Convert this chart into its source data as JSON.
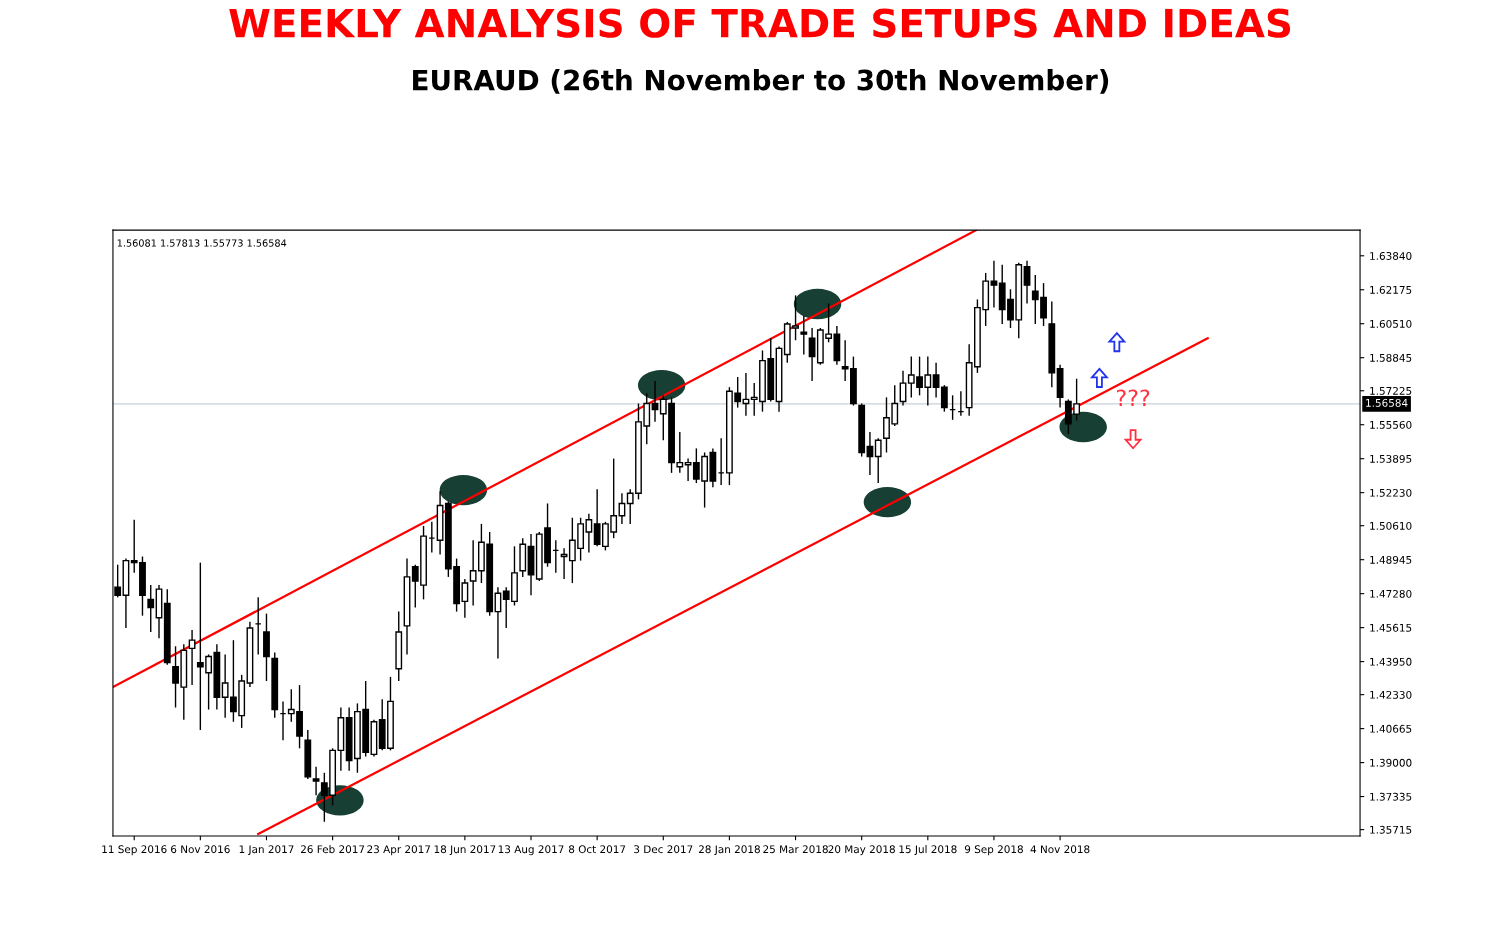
{
  "chart_data": {
    "type": "candlestick",
    "title": "WEEKLY ANALYSIS OF TRADE SETUPS AND IDEAS",
    "subtitle": "EURAUD (26th November to 30th November)",
    "annotations": [
      "1.56081 1.57813 1.55773 1.56584",
      "???"
    ],
    "color": "#000000",
    "x": [
      "2016-08-28",
      "2016-09-04",
      "2016-09-11",
      "2016-09-18",
      "2016-09-25",
      "2016-10-02",
      "2016-10-09",
      "2016-10-16",
      "2016-10-23",
      "2016-10-30",
      "2016-11-06",
      "2016-11-13",
      "2016-11-20",
      "2016-11-27",
      "2016-12-04",
      "2016-12-11",
      "2016-12-18",
      "2016-12-25",
      "2017-01-01",
      "2017-01-08",
      "2017-01-15",
      "2017-01-22",
      "2017-01-29",
      "2017-02-05",
      "2017-02-12",
      "2017-02-19",
      "2017-02-26",
      "2017-03-05",
      "2017-03-12",
      "2017-03-19",
      "2017-03-26",
      "2017-04-02",
      "2017-04-09",
      "2017-04-16",
      "2017-04-23",
      "2017-04-30",
      "2017-05-07",
      "2017-05-14",
      "2017-05-21",
      "2017-05-28",
      "2017-06-04",
      "2017-06-11",
      "2017-06-18",
      "2017-06-25",
      "2017-07-02",
      "2017-07-09",
      "2017-07-16",
      "2017-07-23",
      "2017-07-30",
      "2017-08-06",
      "2017-08-13",
      "2017-08-20",
      "2017-08-27",
      "2017-09-03",
      "2017-09-10",
      "2017-09-17",
      "2017-09-24",
      "2017-10-01",
      "2017-10-08",
      "2017-10-15",
      "2017-10-22",
      "2017-10-29",
      "2017-11-05",
      "2017-11-12",
      "2017-11-19",
      "2017-11-26",
      "2017-12-03",
      "2017-12-10",
      "2017-12-17",
      "2017-12-24",
      "2017-12-31",
      "2018-01-07",
      "2018-01-14",
      "2018-01-21",
      "2018-01-28",
      "2018-02-04",
      "2018-02-11",
      "2018-02-18",
      "2018-02-25",
      "2018-03-04",
      "2018-03-11",
      "2018-03-18",
      "2018-03-25",
      "2018-04-01",
      "2018-04-08",
      "2018-04-15",
      "2018-04-22",
      "2018-04-29",
      "2018-05-06",
      "2018-05-13",
      "2018-05-20",
      "2018-05-27",
      "2018-06-03",
      "2018-06-10",
      "2018-06-17",
      "2018-06-24",
      "2018-07-01",
      "2018-07-08",
      "2018-07-15",
      "2018-07-22",
      "2018-07-29",
      "2018-08-05",
      "2018-08-12",
      "2018-08-19",
      "2018-08-26",
      "2018-09-02",
      "2018-09-09",
      "2018-09-16",
      "2018-09-23",
      "2018-09-30",
      "2018-10-07",
      "2018-10-14",
      "2018-10-21",
      "2018-10-28",
      "2018-11-04",
      "2018-11-11",
      "2018-11-18"
    ],
    "ohlc": [
      [
        1.476,
        1.487,
        1.471,
        1.472
      ],
      [
        1.472,
        1.49,
        1.456,
        1.489
      ],
      [
        1.489,
        1.509,
        1.483,
        1.488
      ],
      [
        1.488,
        1.491,
        1.462,
        1.472
      ],
      [
        1.47,
        1.477,
        1.454,
        1.466
      ],
      [
        1.461,
        1.477,
        1.451,
        1.475
      ],
      [
        1.468,
        1.475,
        1.438,
        1.439
      ],
      [
        1.437,
        1.447,
        1.417,
        1.429
      ],
      [
        1.427,
        1.448,
        1.411,
        1.445
      ],
      [
        1.446,
        1.455,
        1.428,
        1.45
      ],
      [
        1.439,
        1.488,
        1.406,
        1.437
      ],
      [
        1.434,
        1.443,
        1.416,
        1.442
      ],
      [
        1.444,
        1.448,
        1.416,
        1.422
      ],
      [
        1.422,
        1.443,
        1.412,
        1.429
      ],
      [
        1.422,
        1.45,
        1.41,
        1.415
      ],
      [
        1.413,
        1.433,
        1.407,
        1.43
      ],
      [
        1.429,
        1.459,
        1.427,
        1.456
      ],
      [
        1.458,
        1.471,
        1.443,
        1.458
      ],
      [
        1.454,
        1.463,
        1.43,
        1.442
      ],
      [
        1.441,
        1.444,
        1.412,
        1.416
      ],
      [
        1.414,
        1.42,
        1.401,
        1.414
      ],
      [
        1.414,
        1.426,
        1.41,
        1.416
      ],
      [
        1.415,
        1.428,
        1.397,
        1.403
      ],
      [
        1.401,
        1.406,
        1.382,
        1.383
      ],
      [
        1.382,
        1.388,
        1.374,
        1.381
      ],
      [
        1.38,
        1.385,
        1.361,
        1.374
      ],
      [
        1.374,
        1.397,
        1.369,
        1.396
      ],
      [
        1.396,
        1.417,
        1.386,
        1.412
      ],
      [
        1.412,
        1.417,
        1.386,
        1.391
      ],
      [
        1.392,
        1.419,
        1.385,
        1.415
      ],
      [
        1.416,
        1.43,
        1.393,
        1.395
      ],
      [
        1.394,
        1.411,
        1.393,
        1.41
      ],
      [
        1.411,
        1.421,
        1.396,
        1.397
      ],
      [
        1.397,
        1.432,
        1.396,
        1.42
      ],
      [
        1.436,
        1.464,
        1.43,
        1.454
      ],
      [
        1.457,
        1.49,
        1.443,
        1.481
      ],
      [
        1.486,
        1.487,
        1.466,
        1.479
      ],
      [
        1.477,
        1.506,
        1.47,
        1.501
      ],
      [
        1.5,
        1.508,
        1.493,
        1.5
      ],
      [
        1.499,
        1.523,
        1.492,
        1.516
      ],
      [
        1.517,
        1.518,
        1.481,
        1.485
      ],
      [
        1.486,
        1.49,
        1.464,
        1.468
      ],
      [
        1.469,
        1.48,
        1.461,
        1.478
      ],
      [
        1.479,
        1.499,
        1.467,
        1.484
      ],
      [
        1.484,
        1.507,
        1.478,
        1.498
      ],
      [
        1.497,
        1.503,
        1.462,
        1.464
      ],
      [
        1.464,
        1.476,
        1.441,
        1.473
      ],
      [
        1.474,
        1.476,
        1.456,
        1.47
      ],
      [
        1.469,
        1.496,
        1.467,
        1.483
      ],
      [
        1.484,
        1.5,
        1.481,
        1.497
      ],
      [
        1.496,
        1.502,
        1.472,
        1.482
      ],
      [
        1.48,
        1.503,
        1.479,
        1.502
      ],
      [
        1.505,
        1.517,
        1.486,
        1.488
      ],
      [
        1.494,
        1.499,
        1.483,
        1.494
      ],
      [
        1.491,
        1.495,
        1.48,
        1.492
      ],
      [
        1.489,
        1.51,
        1.478,
        1.499
      ],
      [
        1.495,
        1.51,
        1.489,
        1.507
      ],
      [
        1.503,
        1.512,
        1.493,
        1.509
      ],
      [
        1.507,
        1.524,
        1.496,
        1.497
      ],
      [
        1.496,
        1.508,
        1.494,
        1.507
      ],
      [
        1.503,
        1.539,
        1.5,
        1.511
      ],
      [
        1.511,
        1.522,
        1.507,
        1.517
      ],
      [
        1.517,
        1.524,
        1.507,
        1.522
      ],
      [
        1.522,
        1.566,
        1.519,
        1.557
      ],
      [
        1.555,
        1.571,
        1.546,
        1.566
      ],
      [
        1.566,
        1.577,
        1.557,
        1.563
      ],
      [
        1.561,
        1.57,
        1.548,
        1.568
      ],
      [
        1.566,
        1.569,
        1.532,
        1.537
      ],
      [
        1.535,
        1.552,
        1.532,
        1.537
      ],
      [
        1.536,
        1.539,
        1.528,
        1.537
      ],
      [
        1.537,
        1.544,
        1.527,
        1.529
      ],
      [
        1.528,
        1.542,
        1.515,
        1.54
      ],
      [
        1.542,
        1.544,
        1.525,
        1.528
      ],
      [
        1.532,
        1.549,
        1.526,
        1.532
      ],
      [
        1.532,
        1.574,
        1.526,
        1.572
      ],
      [
        1.571,
        1.579,
        1.564,
        1.567
      ],
      [
        1.566,
        1.581,
        1.56,
        1.568
      ],
      [
        1.568,
        1.576,
        1.56,
        1.569
      ],
      [
        1.567,
        1.592,
        1.562,
        1.587
      ],
      [
        1.588,
        1.598,
        1.567,
        1.568
      ],
      [
        1.567,
        1.594,
        1.562,
        1.593
      ],
      [
        1.59,
        1.606,
        1.586,
        1.605
      ],
      [
        1.603,
        1.619,
        1.597,
        1.604
      ],
      [
        1.601,
        1.609,
        1.59,
        1.6
      ],
      [
        1.598,
        1.603,
        1.577,
        1.589
      ],
      [
        1.586,
        1.603,
        1.585,
        1.602
      ],
      [
        1.598,
        1.615,
        1.596,
        1.6
      ],
      [
        1.6,
        1.604,
        1.585,
        1.587
      ],
      [
        1.584,
        1.597,
        1.577,
        1.583
      ],
      [
        1.583,
        1.589,
        1.565,
        1.566
      ],
      [
        1.565,
        1.566,
        1.54,
        1.542
      ],
      [
        1.545,
        1.552,
        1.531,
        1.54
      ],
      [
        1.54,
        1.549,
        1.527,
        1.548
      ],
      [
        1.549,
        1.569,
        1.542,
        1.559
      ],
      [
        1.556,
        1.575,
        1.555,
        1.566
      ],
      [
        1.567,
        1.582,
        1.565,
        1.576
      ],
      [
        1.576,
        1.589,
        1.569,
        1.58
      ],
      [
        1.579,
        1.589,
        1.57,
        1.574
      ],
      [
        1.574,
        1.589,
        1.565,
        1.58
      ],
      [
        1.58,
        1.586,
        1.569,
        1.574
      ],
      [
        1.574,
        1.575,
        1.562,
        1.564
      ],
      [
        1.563,
        1.57,
        1.558,
        1.563
      ],
      [
        1.562,
        1.572,
        1.56,
        1.562
      ],
      [
        1.564,
        1.595,
        1.56,
        1.586
      ],
      [
        1.584,
        1.617,
        1.581,
        1.613
      ],
      [
        1.612,
        1.63,
        1.604,
        1.626
      ],
      [
        1.626,
        1.636,
        1.613,
        1.624
      ],
      [
        1.625,
        1.634,
        1.605,
        1.612
      ],
      [
        1.617,
        1.622,
        1.603,
        1.607
      ],
      [
        1.607,
        1.635,
        1.598,
        1.634
      ],
      [
        1.633,
        1.636,
        1.615,
        1.624
      ],
      [
        1.621,
        1.629,
        1.605,
        1.617
      ],
      [
        1.618,
        1.625,
        1.604,
        1.608
      ],
      [
        1.605,
        1.616,
        1.574,
        1.581
      ],
      [
        1.583,
        1.585,
        1.564,
        1.569
      ],
      [
        1.567,
        1.568,
        1.551,
        1.556
      ],
      [
        1.56081,
        1.57813,
        1.55773,
        1.56584
      ]
    ],
    "series": [
      {
        "type": "line",
        "color": "#ff0000",
        "x": [
          "2016-08-24",
          "2018-08-25"
        ],
        "values": [
          1.427,
          1.651
        ]
      },
      {
        "type": "line",
        "color": "#ff0000",
        "x": [
          "2016-12-25",
          "2019-03-09"
        ],
        "values": [
          1.355,
          1.598
        ]
      }
    ],
    "ref_lines": [
      {
        "axis": "y",
        "value": 1.56584,
        "label": "1.56584",
        "color": "#c8d0d4"
      }
    ],
    "xlim": [
      "2016-08-24",
      "2019-07-16"
    ],
    "xticks": [
      {
        "value": "2016-09-11",
        "label": "11 Sep 2016"
      },
      {
        "value": "2016-11-06",
        "label": "6 Nov 2016"
      },
      {
        "value": "2017-01-01",
        "label": "1 Jan 2017"
      },
      {
        "value": "2017-02-26",
        "label": "26 Feb 2017"
      },
      {
        "value": "2017-04-23",
        "label": "23 Apr 2017"
      },
      {
        "value": "2017-06-18",
        "label": "18 Jun 2017"
      },
      {
        "value": "2017-08-13",
        "label": "13 Aug 2017"
      },
      {
        "value": "2017-10-08",
        "label": "8 Oct 2017"
      },
      {
        "value": "2017-12-03",
        "label": "3 Dec 2017"
      },
      {
        "value": "2018-01-28",
        "label": "28 Jan 2018"
      },
      {
        "value": "2018-03-25",
        "label": "25 Mar 2018"
      },
      {
        "value": "2018-05-20",
        "label": "20 May 2018"
      },
      {
        "value": "2018-07-15",
        "label": "15 Jul 2018"
      },
      {
        "value": "2018-09-09",
        "label": "9 Sep 2018"
      },
      {
        "value": "2018-11-04",
        "label": "4 Nov 2018"
      }
    ],
    "ylim": [
      1.354,
      1.651
    ],
    "yticks": [
      {
        "value": 1.6384,
        "label": "1.63840"
      },
      {
        "value": 1.62175,
        "label": "1.62175"
      },
      {
        "value": 1.6051,
        "label": "1.60510"
      },
      {
        "value": 1.58845,
        "label": "1.58845"
      },
      {
        "value": 1.57225,
        "label": "1.57225"
      },
      {
        "value": 1.5556,
        "label": "1.55560"
      },
      {
        "value": 1.53895,
        "label": "1.53895"
      },
      {
        "value": 1.5223,
        "label": "1.52230"
      },
      {
        "value": 1.5061,
        "label": "1.50610"
      },
      {
        "value": 1.48945,
        "label": "1.48945"
      },
      {
        "value": 1.4728,
        "label": "1.47280"
      },
      {
        "value": 1.45615,
        "label": "1.45615"
      },
      {
        "value": 1.4395,
        "label": "1.43950"
      },
      {
        "value": 1.4233,
        "label": "1.42330"
      },
      {
        "value": 1.40665,
        "label": "1.40665"
      },
      {
        "value": 1.39,
        "label": "1.39000"
      },
      {
        "value": 1.37335,
        "label": "1.37335"
      },
      {
        "value": 1.35715,
        "label": "1.35715"
      }
    ],
    "grid": false
  }
}
